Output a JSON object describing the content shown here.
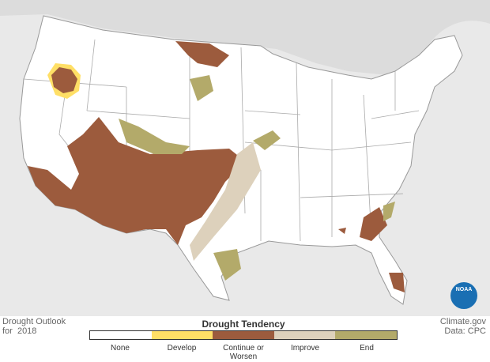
{
  "header": {
    "title": "Drought Outlook",
    "subtitle": "for  2018"
  },
  "credits": {
    "site": "Climate.gov",
    "source": "Data: CPC"
  },
  "logo": "NOAA",
  "legend": {
    "title": "Drought Tendency",
    "items": [
      {
        "label": "None",
        "color": "#ffffff"
      },
      {
        "label": "Develop",
        "color": "#ffdf66"
      },
      {
        "label": "Continue or Worsen",
        "color": "#9c5b3d"
      },
      {
        "label": "Improve",
        "color": "#ddd1bc"
      },
      {
        "label": "End",
        "color": "#b3aa6a"
      }
    ]
  }
}
